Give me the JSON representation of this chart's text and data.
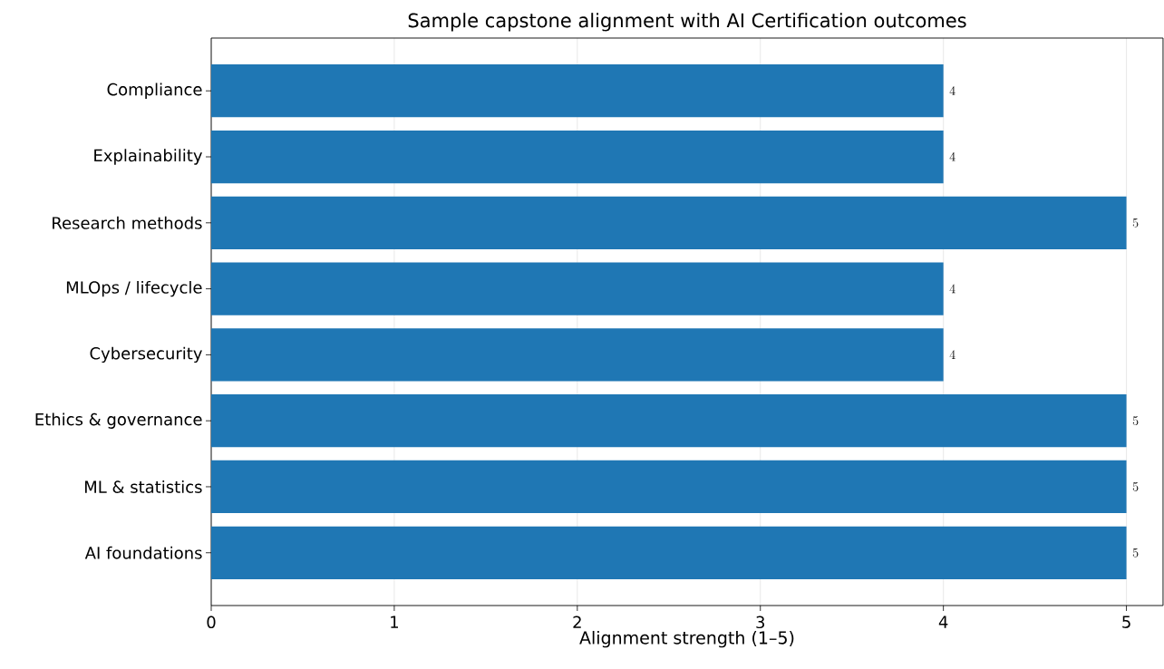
{
  "chart_data": {
    "type": "bar",
    "orientation": "horizontal",
    "title": "Sample capstone alignment with AI Certification outcomes",
    "xlabel": "Alignment strength (1–5)",
    "categories": [
      "Compliance",
      "Explainability",
      "Research methods",
      "MLOps / lifecycle",
      "Cybersecurity",
      "Ethics & governance",
      "ML & statistics",
      "AI foundations"
    ],
    "values": [
      4,
      4,
      5,
      4,
      4,
      5,
      5,
      5
    ],
    "color": "#1f77b4",
    "xlim": [
      0,
      5.2
    ],
    "xticks": [
      0,
      1,
      2,
      3,
      4,
      5
    ],
    "grid": "x",
    "data_labels": true
  }
}
